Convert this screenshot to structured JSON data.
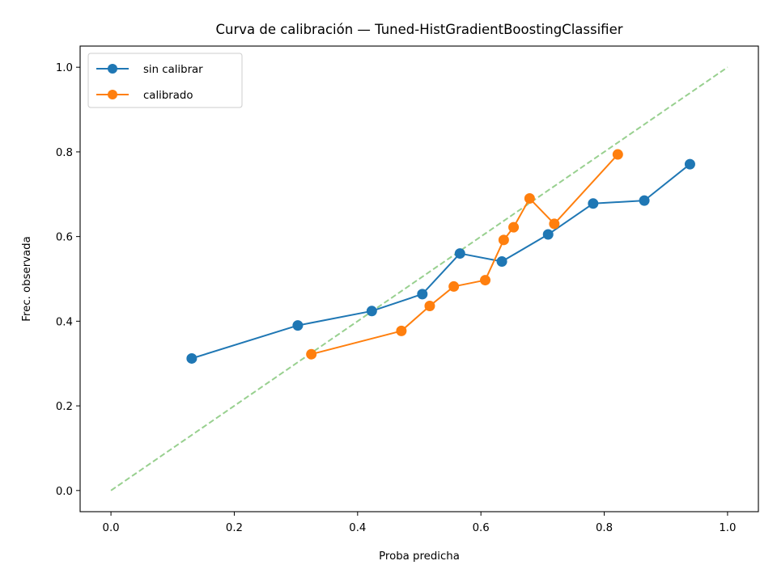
{
  "chart_data": {
    "type": "line",
    "title": "Curva de calibración — Tuned-HistGradientBoostingClassifier",
    "xlabel": "Proba predicha",
    "ylabel": "Frec. observada",
    "xlim": [
      -0.05,
      1.05
    ],
    "ylim": [
      -0.05,
      1.05
    ],
    "xticks": [
      "0.0",
      "0.2",
      "0.4",
      "0.6",
      "0.8",
      "1.0"
    ],
    "yticks": [
      "0.0",
      "0.2",
      "0.4",
      "0.6",
      "0.8",
      "1.0"
    ],
    "grid": false,
    "legend_position": "top-left",
    "reference_line": {
      "x": [
        0,
        1
      ],
      "y": [
        0,
        1
      ],
      "style": "dashed",
      "color": "#98d08f"
    },
    "series": [
      {
        "name": "sin calibrar",
        "color": "#1f77b4",
        "x": [
          0.131,
          0.303,
          0.423,
          0.505,
          0.566,
          0.634,
          0.709,
          0.782,
          0.865,
          0.939
        ],
        "y": [
          0.312,
          0.39,
          0.424,
          0.464,
          0.56,
          0.541,
          0.605,
          0.678,
          0.685,
          0.771
        ]
      },
      {
        "name": "calibrado",
        "color": "#ff7f0e",
        "x": [
          0.325,
          0.471,
          0.517,
          0.556,
          0.607,
          0.637,
          0.653,
          0.679,
          0.719,
          0.822
        ],
        "y": [
          0.322,
          0.377,
          0.436,
          0.482,
          0.497,
          0.592,
          0.622,
          0.69,
          0.63,
          0.794
        ]
      }
    ]
  }
}
